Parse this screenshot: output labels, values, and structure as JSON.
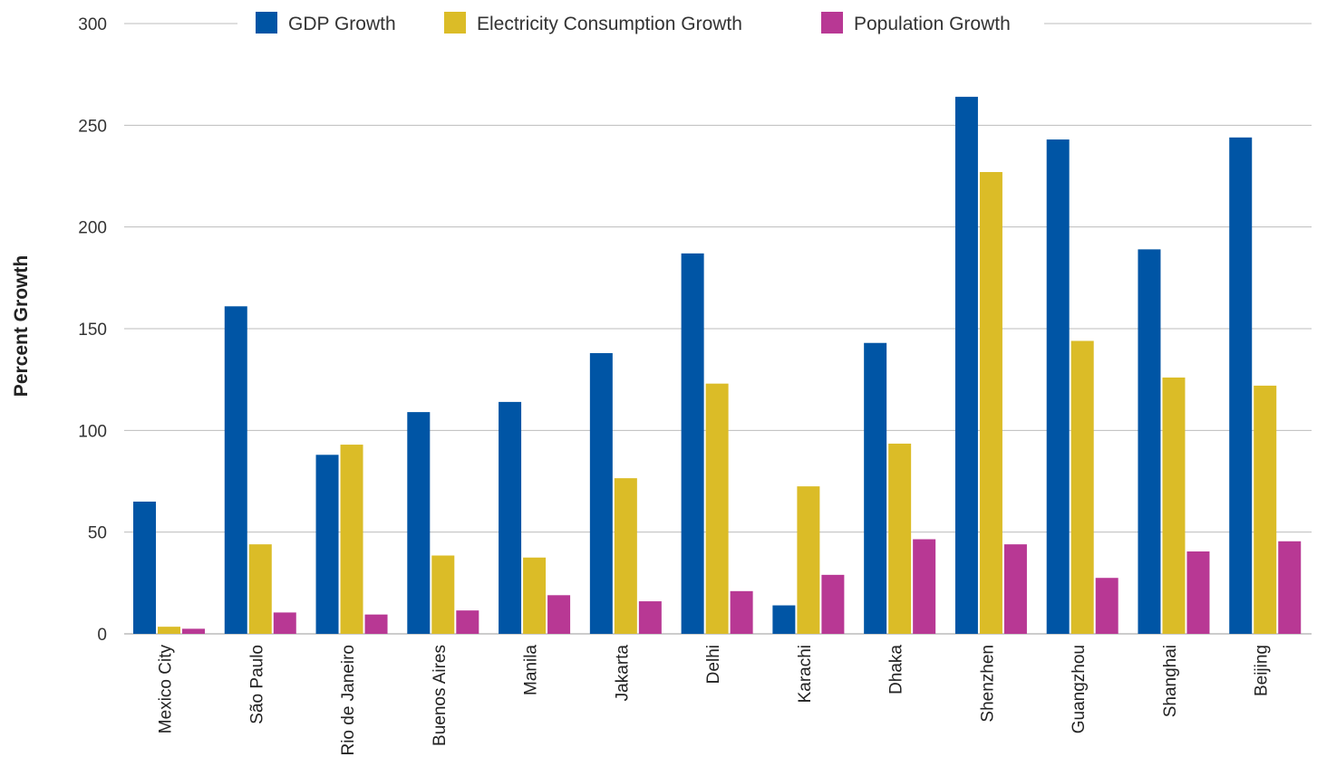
{
  "chart_data": {
    "type": "bar",
    "title": "",
    "xlabel": "",
    "ylabel": "Percent Growth",
    "ylim": [
      0,
      300
    ],
    "yticks": [
      0,
      50,
      100,
      150,
      200,
      250,
      300
    ],
    "grid": true,
    "legend_position": "top",
    "categories": [
      "Mexico City",
      "São Paulo",
      "Rio de Janeiro",
      "Buenos Aires",
      "Manila",
      "Jakarta",
      "Delhi",
      "Karachi",
      "Dhaka",
      "Shenzhen",
      "Guangzhou",
      "Shanghai",
      "Beijing"
    ],
    "series": [
      {
        "name": "GDP Growth",
        "color": "#0055a5",
        "values": [
          65,
          161,
          88,
          109,
          114,
          138,
          187,
          14,
          143,
          264,
          243,
          189,
          244
        ]
      },
      {
        "name": "Electricity Consumption Growth",
        "color": "#dbbc27",
        "values": [
          3.5,
          44,
          93,
          38.5,
          37.5,
          76.5,
          123,
          72.5,
          93.5,
          227,
          144,
          126,
          122
        ]
      },
      {
        "name": "Population Growth",
        "color": "#b83894",
        "values": [
          2.5,
          10.5,
          9.5,
          11.5,
          19,
          16,
          21,
          29,
          46.5,
          44,
          27.5,
          40.5,
          45.5
        ]
      }
    ]
  }
}
